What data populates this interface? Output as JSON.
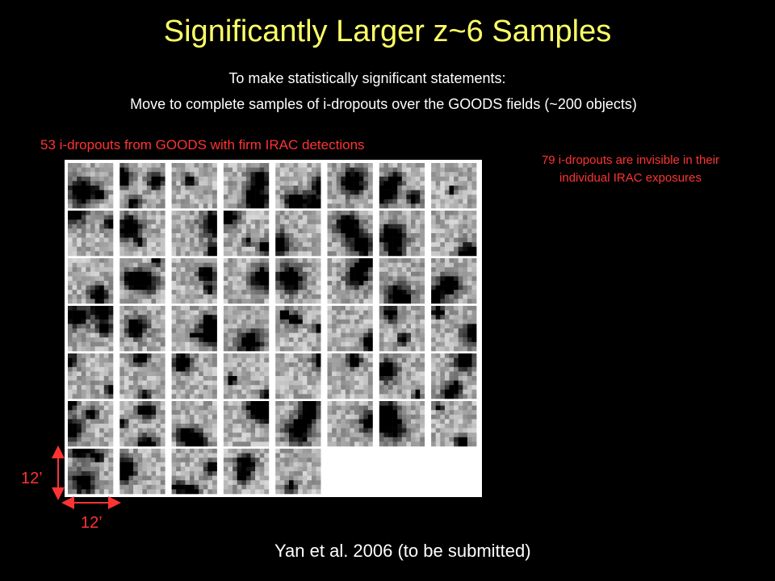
{
  "slide": {
    "title": "Significantly Larger z~6 Samples",
    "intro": {
      "line1": "To make statistically significant statements:",
      "line2": "Move to complete samples of i-dropouts over the GOODS fields (~200 objects)"
    },
    "grid_caption": "53 i-dropouts from GOODS with firm IRAC detections",
    "side_note": "79 i-dropouts are invisible in their individual IRAC exposures",
    "scale": {
      "vertical": "12’",
      "horizontal": "12’"
    },
    "citation": "Yan et al. 2006 (to be submitted)"
  }
}
